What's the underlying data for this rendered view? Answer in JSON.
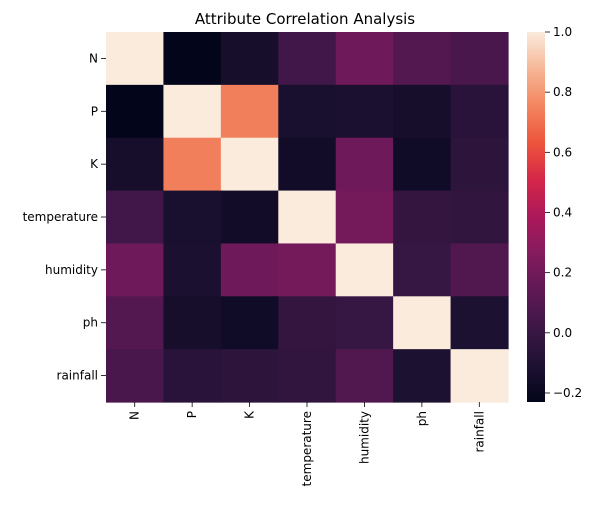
{
  "chart_data": {
    "type": "heatmap",
    "title": "Attribute Correlation Analysis",
    "xlabel": "",
    "ylabel": "",
    "rows": [
      "N",
      "P",
      "K",
      "temperature",
      "humidity",
      "ph",
      "rainfall"
    ],
    "cols": [
      "N",
      "P",
      "K",
      "temperature",
      "humidity",
      "ph",
      "rainfall"
    ],
    "values": [
      [
        1.0,
        -0.23,
        -0.14,
        0.03,
        0.19,
        0.1,
        0.06
      ],
      [
        -0.23,
        1.0,
        0.74,
        -0.13,
        -0.12,
        -0.14,
        -0.06
      ],
      [
        -0.14,
        0.74,
        1.0,
        -0.16,
        0.19,
        -0.17,
        -0.05
      ],
      [
        0.03,
        -0.13,
        -0.16,
        1.0,
        0.21,
        -0.02,
        -0.03
      ],
      [
        0.19,
        -0.12,
        0.19,
        0.21,
        1.0,
        -0.01,
        0.09
      ],
      [
        0.1,
        -0.14,
        -0.17,
        -0.02,
        -0.01,
        1.0,
        -0.11
      ],
      [
        0.06,
        -0.06,
        -0.05,
        -0.03,
        0.09,
        -0.11,
        1.0
      ]
    ],
    "colorbar": {
      "min": -0.23,
      "max": 1.0,
      "ticks": [
        -0.2,
        0.0,
        0.2,
        0.4,
        0.6,
        0.8,
        1.0
      ],
      "tick_labels": [
        "−0.2",
        "0.0",
        "0.2",
        "0.4",
        "0.6",
        "0.8",
        "1.0"
      ],
      "colormap": "rocket"
    },
    "grid": false
  }
}
